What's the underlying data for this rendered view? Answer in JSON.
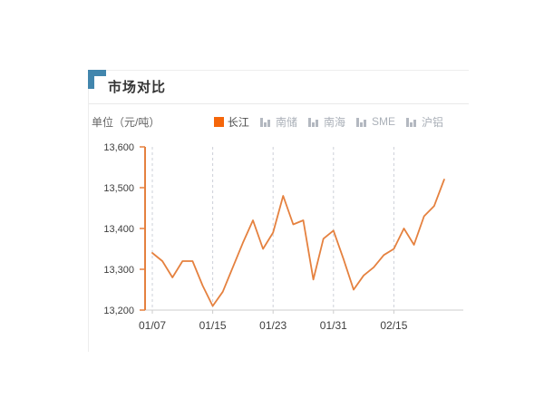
{
  "panel": {
    "title": "市场对比"
  },
  "colors": {
    "series_line": "#e5813f",
    "legend_active_swatch": "#f5660a",
    "corner_accent": "#4286ad",
    "gridline": "#ccd0d8",
    "axis_gray": "#cccccc",
    "label_text": "#3d3d3d",
    "inactive_legend_icon": "#b3b8c0"
  },
  "chart_data": {
    "type": "line",
    "title": "市场对比",
    "unit_label": "单位（元/吨）",
    "unit": "元/吨",
    "ylim": [
      13200,
      13600
    ],
    "y_ticks": [
      {
        "value": 13600,
        "label": "13,600"
      },
      {
        "value": 13500,
        "label": "13,500"
      },
      {
        "value": 13400,
        "label": "13,400"
      },
      {
        "value": 13300,
        "label": "13,300"
      },
      {
        "value": 13200,
        "label": "13,200"
      }
    ],
    "x_tick_labels": [
      "01/07",
      "01/15",
      "01/23",
      "01/31",
      "02/15"
    ],
    "x_tick_indices": [
      0,
      6,
      12,
      18,
      24
    ],
    "grid": "vertical-dashed",
    "legend_position": "top-right",
    "legend": [
      {
        "label": "长江",
        "active": true
      },
      {
        "label": "南储",
        "active": false
      },
      {
        "label": "南海",
        "active": false
      },
      {
        "label": "SME",
        "active": false
      },
      {
        "label": "沪铝",
        "active": false
      }
    ],
    "series": [
      {
        "name": "长江",
        "values": [
          13340,
          13320,
          13280,
          13320,
          13320,
          13260,
          13210,
          13245,
          13305,
          13365,
          13420,
          13350,
          13390,
          13480,
          13410,
          13420,
          13275,
          13375,
          13395,
          13325,
          13250,
          13285,
          13305,
          13335,
          13350,
          13400,
          13360,
          13430,
          13455,
          13520
        ]
      }
    ]
  }
}
